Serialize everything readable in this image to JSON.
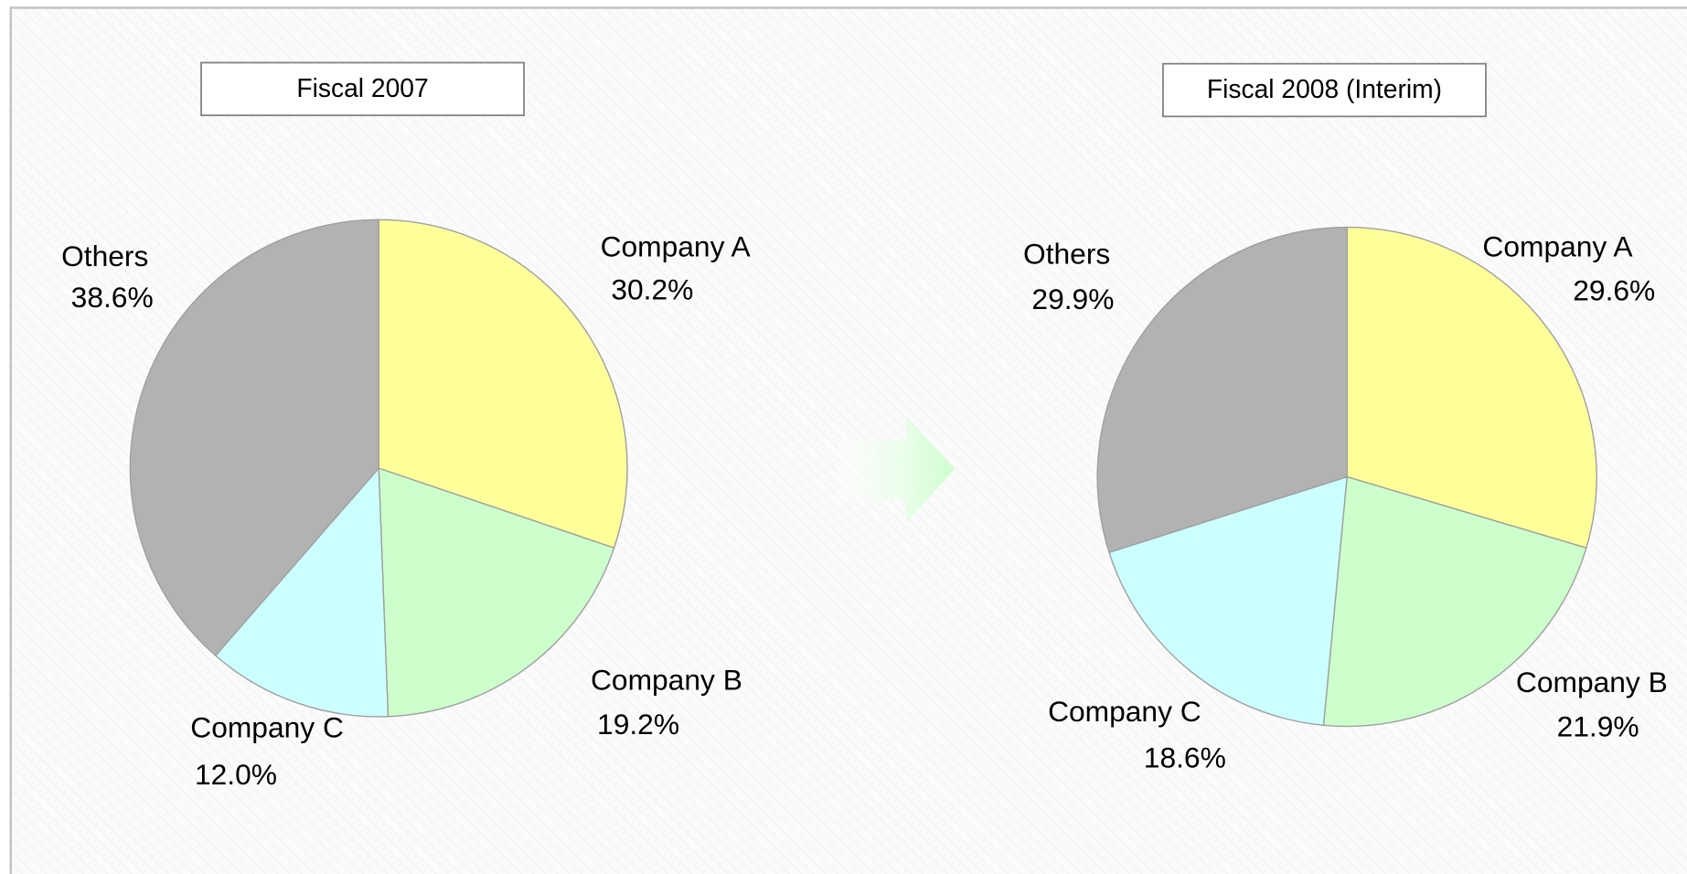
{
  "chart_data": [
    {
      "type": "pie",
      "title": "Fiscal 2007",
      "categories": [
        "Company A",
        "Company B",
        "Company C",
        "Others"
      ],
      "values": [
        30.2,
        19.2,
        12.0,
        38.6
      ],
      "value_labels": [
        "30.2%",
        "19.2%",
        "12.0%",
        "38.6%"
      ],
      "colors": [
        "#ffff99",
        "#ccffcc",
        "#ccffff",
        "#b2b2b2"
      ]
    },
    {
      "type": "pie",
      "title": "Fiscal 2008 (Interim)",
      "categories": [
        "Company A",
        "Company B",
        "Company C",
        "Others"
      ],
      "values": [
        29.6,
        21.9,
        18.6,
        29.9
      ],
      "value_labels": [
        "29.6%",
        "21.9%",
        "18.6%",
        "29.9%"
      ],
      "colors": [
        "#ffff99",
        "#ccffcc",
        "#ccffff",
        "#b2b2b2"
      ]
    }
  ]
}
